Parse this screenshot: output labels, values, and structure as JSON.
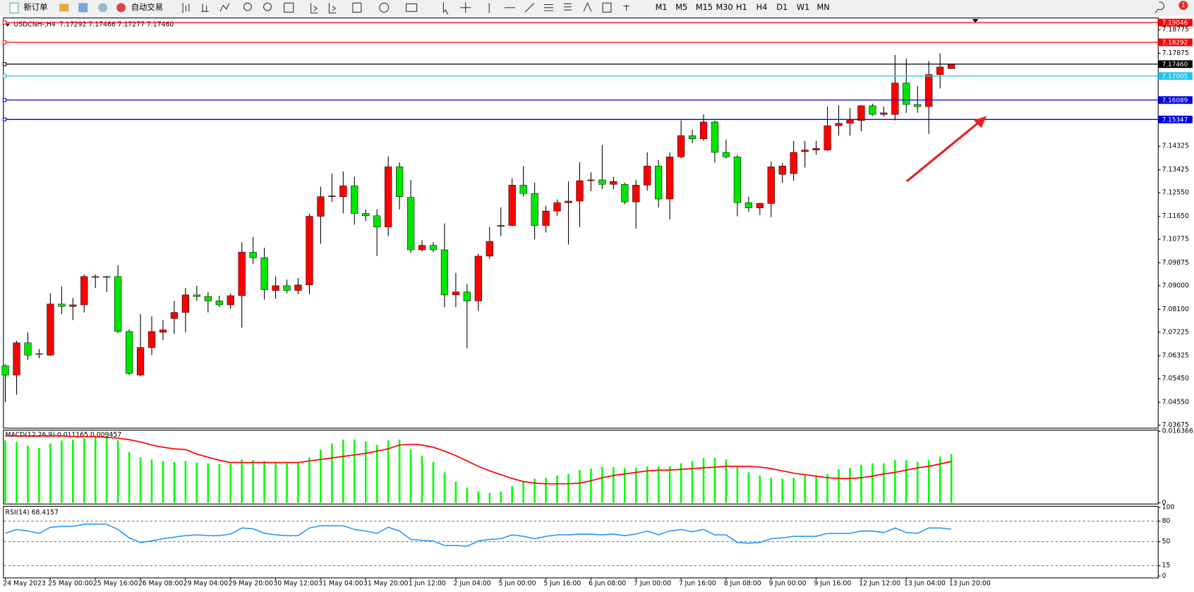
{
  "toolbar": {
    "new_order": "新订单",
    "auto_trading": "自动交易",
    "timeframes": [
      "M1",
      "M5",
      "M15",
      "M30",
      "H1",
      "H4",
      "D1",
      "W1",
      "MN"
    ],
    "notifications": "1"
  },
  "chart_data": [
    {
      "type": "candlestick",
      "title": "USDCNH-,H4",
      "info": "7.17292 7.17466 7.17277 7.17460",
      "categories": [
        "24 May 2023",
        null,
        null,
        null,
        "25 May 00:00",
        null,
        null,
        null,
        "25 May 16:00",
        null,
        null,
        null,
        "26 May 08:00",
        null,
        null,
        null,
        "29 May 04:00",
        null,
        null,
        null,
        "29 May 20:00",
        null,
        null,
        null,
        "30 May 12:00",
        null,
        null,
        null,
        "31 May 04:00",
        null,
        null,
        null,
        "31 May 20:00",
        null,
        null,
        null,
        "1 Jun 12:00",
        null,
        null,
        null,
        "2 Jun 04:00",
        null,
        null,
        null,
        "5 Jun 00:00",
        null,
        null,
        null,
        "5 Jun 16:00",
        null,
        null,
        null,
        "6 Jun 08:00",
        null,
        null,
        null,
        "7 Jun 00:00",
        null,
        null,
        null,
        "7 Jun 16:00",
        null,
        null,
        null,
        "8 Jun 08:00",
        null,
        null,
        null,
        "9 Jun 00:00",
        null,
        null,
        null,
        "9 Jun 16:00",
        null,
        null,
        null,
        "12 Jun 12:00",
        null,
        null,
        null,
        "13 Jun 04:00",
        null,
        null,
        null,
        "13 Jun 20:00"
      ],
      "open": [
        7.0594,
        7.0559,
        7.0682,
        7.0641,
        7.0635,
        7.083,
        7.0821,
        7.0827,
        7.0932,
        7.0935,
        7.0935,
        7.0725,
        7.0559,
        7.0664,
        7.0722,
        7.0775,
        7.0798,
        7.0865,
        7.0859,
        7.0842,
        7.0827,
        7.0862,
        7.1028,
        7.1007,
        7.0882,
        7.09,
        7.0882,
        7.0903,
        7.1165,
        7.124,
        7.124,
        7.1281,
        7.1176,
        7.1167,
        7.1124,
        7.1354,
        7.1237,
        7.1037,
        7.1054,
        7.1037,
        7.0865,
        7.0876,
        7.0842,
        7.1013,
        7.1127,
        7.113,
        7.1284,
        7.1252,
        7.113,
        7.1185,
        7.1217,
        7.1223,
        7.1301,
        7.1304,
        7.1287,
        7.1287,
        7.122,
        7.1284,
        7.1357,
        7.1231,
        7.1392,
        7.1473,
        7.1461,
        7.1525,
        7.1409,
        7.1392,
        7.1217,
        7.1197,
        7.1214,
        7.1325,
        7.1328,
        7.1412,
        7.1418,
        7.1418,
        7.1511,
        7.152,
        7.1531,
        7.1587,
        7.1554,
        7.1554,
        7.1674,
        7.1592,
        7.1584,
        7.1706,
        7.17292
      ],
      "high": [
        7.06,
        7.069,
        7.0722,
        7.0658,
        7.0871,
        7.0897,
        7.0853,
        7.0943,
        7.0943,
        7.0938,
        7.0978,
        7.0734,
        7.0792,
        7.0783,
        7.0769,
        7.0842,
        7.0891,
        7.09,
        7.0876,
        7.0862,
        7.0871,
        7.1066,
        7.1086,
        7.1045,
        7.0935,
        7.0923,
        7.0929,
        7.1176,
        7.1278,
        7.1328,
        7.1336,
        7.1316,
        7.1191,
        7.1191,
        7.1394,
        7.1371,
        7.1304,
        7.1074,
        7.1066,
        7.1138,
        7.0949,
        7.0906,
        7.1022,
        7.1124,
        7.1199,
        7.131,
        7.1357,
        7.1293,
        7.1205,
        7.1229,
        7.1298,
        7.1371,
        7.1333,
        7.1438,
        7.1316,
        7.1293,
        7.1304,
        7.1409,
        7.138,
        7.1409,
        7.1531,
        7.1496,
        7.1554,
        7.1531,
        7.1458,
        7.14,
        7.124,
        7.1217,
        7.1374,
        7.1368,
        7.1453,
        7.1453,
        7.1453,
        7.1584,
        7.1589,
        7.1578,
        7.1589,
        7.1595,
        7.1584,
        7.1781,
        7.1767,
        7.1662,
        7.1758,
        7.1787,
        7.17466
      ],
      "low": [
        7.0455,
        7.0484,
        7.0617,
        7.0623,
        7.0633,
        7.0792,
        7.0769,
        7.0798,
        7.0891,
        7.0876,
        7.0719,
        7.0559,
        7.0553,
        7.0635,
        7.0693,
        7.0716,
        7.0722,
        7.0842,
        7.0798,
        7.0818,
        7.0812,
        7.074,
        7.0984,
        7.0847,
        7.085,
        7.0871,
        7.0868,
        7.0868,
        7.106,
        7.122,
        7.1176,
        7.1133,
        7.1147,
        7.1013,
        7.1089,
        7.1191,
        7.1025,
        7.1031,
        7.1028,
        7.0818,
        7.0818,
        7.0661,
        7.0804,
        7.1002,
        7.1089,
        7.1127,
        7.124,
        7.1077,
        7.1103,
        7.1167,
        7.1057,
        7.1124,
        7.1261,
        7.1269,
        7.1269,
        7.1211,
        7.1118,
        7.1263,
        7.1199,
        7.1153,
        7.1386,
        7.1444,
        7.1453,
        7.1371,
        7.1386,
        7.1165,
        7.1182,
        7.117,
        7.1162,
        7.1293,
        7.1301,
        7.1351,
        7.14,
        7.1415,
        7.1473,
        7.1473,
        7.149,
        7.1549,
        7.1546,
        7.1531,
        7.156,
        7.156,
        7.1479,
        7.1653,
        7.17277
      ],
      "close": [
        7.0559,
        7.0682,
        7.0635,
        7.0638,
        7.083,
        7.0821,
        7.0827,
        7.0935,
        7.0935,
        7.0932,
        7.0725,
        7.0565,
        7.0664,
        7.0725,
        7.0731,
        7.0798,
        7.0865,
        7.0859,
        7.0842,
        7.0827,
        7.0862,
        7.1028,
        7.1007,
        7.0885,
        7.09,
        7.0882,
        7.0903,
        7.1165,
        7.124,
        7.1243,
        7.1281,
        7.1176,
        7.1167,
        7.1124,
        7.1354,
        7.124,
        7.1037,
        7.1054,
        7.1037,
        7.0865,
        7.0876,
        7.0842,
        7.1013,
        7.1069,
        7.113,
        7.1284,
        7.1252,
        7.113,
        7.1185,
        7.1217,
        7.1223,
        7.1301,
        7.1304,
        7.1287,
        7.1298,
        7.122,
        7.1284,
        7.1357,
        7.1231,
        7.1392,
        7.1473,
        7.1461,
        7.1525,
        7.1409,
        7.1392,
        7.1217,
        7.1197,
        7.1214,
        7.1354,
        7.1357,
        7.1409,
        7.1418,
        7.1424,
        7.1511,
        7.152,
        7.1534,
        7.1587,
        7.1554,
        7.156,
        7.1674,
        7.1592,
        7.1584,
        7.1706,
        7.1735,
        7.1746
      ],
      "up_color": "#ff0000",
      "down_color": "#00e600",
      "wick_color": "#000000",
      "ylim": [
        7.0356,
        7.1921
      ],
      "yticks": [
        {
          "value": 7.18775,
          "label": "7.18775"
        },
        {
          "value": 7.17875,
          "label": "7.17875"
        },
        {
          "value": 7.14325,
          "label": "7.14325"
        },
        {
          "value": 7.13425,
          "label": "7.13425"
        },
        {
          "value": 7.1255,
          "label": "7.12550"
        },
        {
          "value": 7.1165,
          "label": "7.11650"
        },
        {
          "value": 7.10775,
          "label": "7.10775"
        },
        {
          "value": 7.09875,
          "label": "7.09875"
        },
        {
          "value": 7.09,
          "label": "7.09000"
        },
        {
          "value": 7.081,
          "label": "7.08100"
        },
        {
          "value": 7.07225,
          "label": "7.07225"
        },
        {
          "value": 7.06325,
          "label": "7.06325"
        },
        {
          "value": 7.0545,
          "label": "7.05450"
        },
        {
          "value": 7.0455,
          "label": "7.04550"
        },
        {
          "value": 7.03675,
          "label": "7.03675"
        }
      ],
      "price_lines": [
        {
          "value": 7.19046,
          "label": "7.19046",
          "color": "#ff0000"
        },
        {
          "value": 7.18292,
          "label": "7.18292",
          "color": "#ff0000"
        },
        {
          "value": 7.1746,
          "label": "7.17460",
          "color": "#000000"
        },
        {
          "value": 7.17005,
          "label": "7.17005",
          "color": "#1ec3f0"
        },
        {
          "value": 7.16089,
          "label": "7.16089",
          "color": "#0000e0"
        },
        {
          "value": 7.15347,
          "label": "7.15347",
          "color": "#0000e0"
        }
      ]
    },
    {
      "type": "macd",
      "title": "MACD(12,26,9) 0.011165 0.009457",
      "histogram": {
        "color": "#00ff00",
        "values": [
          0.01427,
          0.01392,
          0.01305,
          0.01253,
          0.01357,
          0.01427,
          0.01444,
          0.01479,
          0.01514,
          0.01514,
          0.01427,
          0.01166,
          0.01044,
          0.00992,
          0.00957,
          0.0094,
          0.00957,
          0.00922,
          0.00905,
          0.00887,
          0.00905,
          0.00992,
          0.00974,
          0.00957,
          0.00922,
          0.00905,
          0.00905,
          0.01044,
          0.01218,
          0.01357,
          0.01444,
          0.01444,
          0.01409,
          0.01322,
          0.01427,
          0.01444,
          0.01218,
          0.01079,
          0.0094,
          0.00696,
          0.00487,
          0.00348,
          0.00261,
          0.00226,
          0.00261,
          0.00383,
          0.00487,
          0.00557,
          0.00574,
          0.00626,
          0.00661,
          0.00748,
          0.00783,
          0.00818,
          0.00818,
          0.008,
          0.008,
          0.00835,
          0.00835,
          0.00835,
          0.00905,
          0.00957,
          0.01027,
          0.01027,
          0.00992,
          0.00818,
          0.00696,
          0.00626,
          0.00574,
          0.00557,
          0.00574,
          0.00626,
          0.00626,
          0.00661,
          0.00766,
          0.008,
          0.0087,
          0.00905,
          0.00905,
          0.00974,
          0.00974,
          0.0094,
          0.00974,
          0.01061,
          0.011165
        ]
      },
      "signal": {
        "color": "#ff0000",
        "values": [
          0.01531,
          0.01531,
          0.01531,
          0.01531,
          0.01531,
          0.01531,
          0.01514,
          0.01514,
          0.01514,
          0.01496,
          0.01479,
          0.01444,
          0.01392,
          0.01322,
          0.0127,
          0.01235,
          0.01218,
          0.01114,
          0.01044,
          0.00974,
          0.00922,
          0.00922,
          0.00922,
          0.00922,
          0.00922,
          0.00922,
          0.00922,
          0.00957,
          0.00992,
          0.01027,
          0.01061,
          0.01096,
          0.01131,
          0.01183,
          0.01235,
          0.01322,
          0.0134,
          0.01322,
          0.0127,
          0.01183,
          0.01079,
          0.00957,
          0.00835,
          0.00731,
          0.00644,
          0.00557,
          0.00487,
          0.00452,
          0.00435,
          0.00435,
          0.00435,
          0.00452,
          0.00505,
          0.00574,
          0.00626,
          0.00661,
          0.00696,
          0.00731,
          0.00748,
          0.00748,
          0.00766,
          0.00783,
          0.008,
          0.00818,
          0.00835,
          0.00835,
          0.00835,
          0.00818,
          0.00783,
          0.00731,
          0.00679,
          0.00644,
          0.00609,
          0.00574,
          0.00557,
          0.00557,
          0.00574,
          0.00609,
          0.00661,
          0.00696,
          0.00748,
          0.008,
          0.00835,
          0.00887,
          0.009457
        ]
      },
      "ylim": [
        0,
        0.016366
      ],
      "yticks": [
        0.016366,
        0
      ]
    },
    {
      "type": "rsi",
      "title": "RSI(14) 68.4157",
      "color": "#1e90ff",
      "values": [
        62.2,
        67.8,
        65.6,
        62.2,
        71.1,
        72.2,
        72.2,
        75.6,
        75.6,
        75.6,
        67.8,
        55.6,
        48.9,
        51.1,
        54.4,
        56.7,
        58.9,
        60.0,
        58.9,
        58.9,
        61.1,
        70.0,
        68.9,
        62.2,
        60.0,
        58.9,
        58.9,
        70.0,
        73.3,
        73.3,
        73.3,
        67.8,
        65.6,
        62.2,
        71.1,
        65.6,
        53.3,
        52.2,
        51.1,
        44.4,
        44.4,
        43.3,
        51.1,
        53.3,
        54.4,
        60.0,
        57.8,
        54.4,
        57.8,
        60.0,
        60.0,
        61.1,
        61.1,
        60.0,
        61.1,
        58.9,
        61.1,
        65.6,
        60.0,
        65.6,
        67.8,
        64.4,
        67.8,
        60.0,
        60.0,
        48.9,
        47.8,
        48.9,
        54.4,
        55.6,
        57.8,
        57.8,
        57.8,
        62.2,
        62.2,
        62.2,
        65.6,
        65.6,
        63.3,
        70.0,
        63.3,
        62.2,
        70.0,
        70.0,
        68.4157
      ],
      "ylim": [
        0,
        100
      ],
      "yticks": [
        100,
        80,
        50,
        15,
        0
      ],
      "grid": "dashed"
    }
  ]
}
